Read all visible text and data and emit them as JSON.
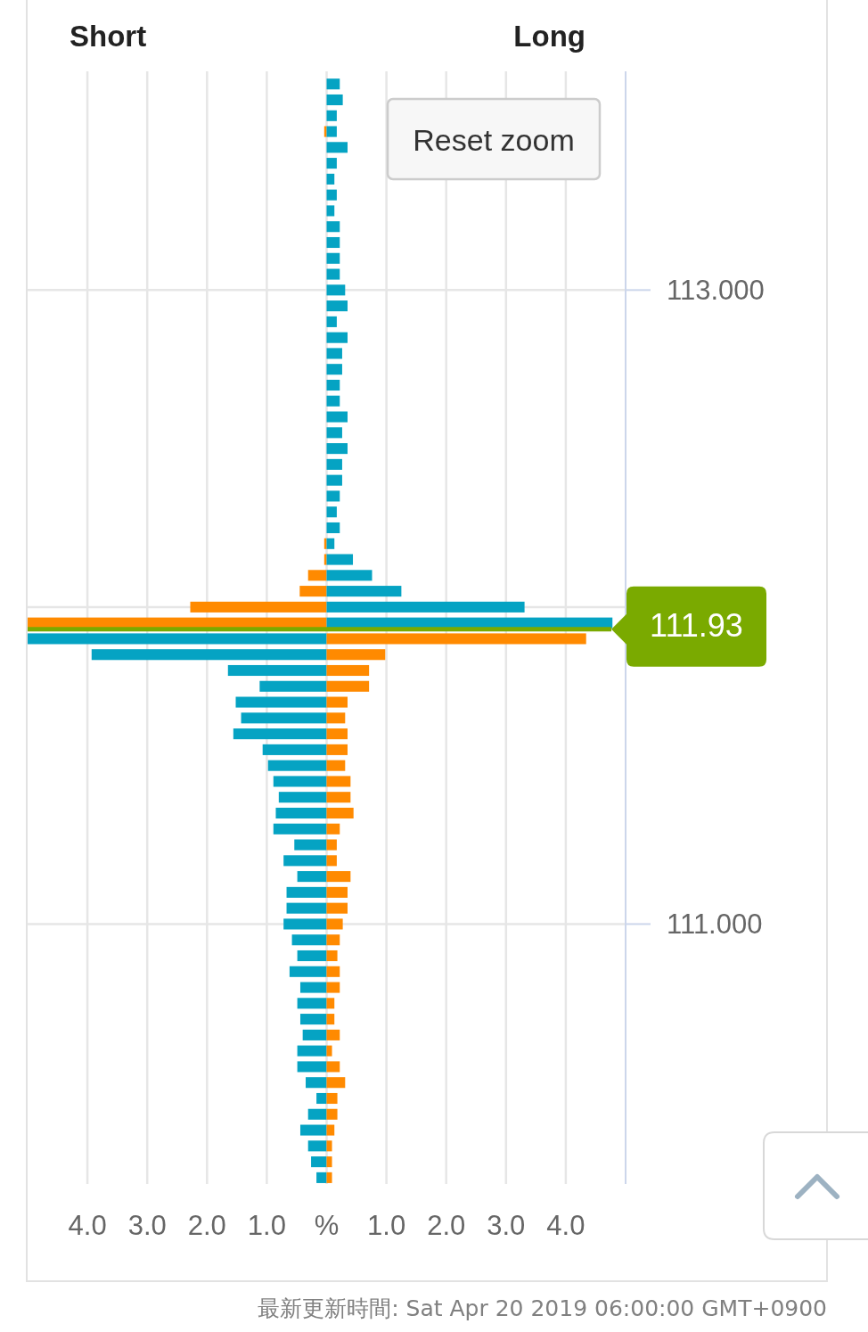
{
  "chart_data": {
    "type": "bar",
    "orientation": "horizontal",
    "stacked": true,
    "x": [
      113.65,
      113.6,
      113.55,
      113.5,
      113.45,
      113.4,
      113.35,
      113.3,
      113.25,
      113.2,
      113.15,
      113.1,
      113.05,
      113,
      112.95,
      112.9,
      112.85,
      112.8,
      112.75,
      112.7,
      112.65,
      112.6,
      112.55,
      112.5,
      112.45,
      112.4,
      112.35,
      112.3,
      112.25,
      112.2,
      112.15,
      112.1,
      112.05,
      112,
      111.95,
      111.9,
      111.85,
      111.8,
      111.75,
      111.7,
      111.65,
      111.6,
      111.55,
      111.5,
      111.45,
      111.4,
      111.35,
      111.3,
      111.25,
      111.2,
      111.15,
      111.1,
      111.05,
      111,
      110.95,
      110.9,
      110.85,
      110.8,
      110.75,
      110.7,
      110.65,
      110.6,
      110.55,
      110.5,
      110.45,
      110.4,
      110.35,
      110.3,
      110.25,
      110.2
    ],
    "series": [
      {
        "values": [
          null,
          null,
          null,
          -0.04,
          null,
          null,
          null,
          null,
          null,
          null,
          null,
          null,
          null,
          null,
          null,
          null,
          null,
          null,
          null,
          null,
          null,
          null,
          null,
          null,
          null,
          null,
          null,
          null,
          null,
          -0.04,
          -0.04,
          -0.31,
          -0.45,
          -2.28,
          -5,
          -5,
          -3.93,
          -1.65,
          -1.12,
          -1.52,
          -1.43,
          -1.56,
          -1.07,
          -0.98,
          -0.89,
          -0.8,
          -0.85,
          -0.89,
          -0.54,
          -0.72,
          -0.49,
          -0.67,
          -0.67,
          -0.72,
          -0.58,
          -0.49,
          -0.62,
          -0.44,
          -0.49,
          -0.44,
          -0.4,
          -0.49,
          -0.49,
          -0.35,
          -0.17,
          -0.31,
          -0.44,
          -0.31,
          -0.26,
          -0.17
        ],
        "colors": [
          null,
          null,
          null,
          "#ff8a00",
          null,
          null,
          null,
          null,
          null,
          null,
          null,
          null,
          null,
          null,
          null,
          null,
          null,
          null,
          null,
          null,
          null,
          null,
          null,
          null,
          null,
          null,
          null,
          null,
          null,
          "#ff8a00",
          "#ff8a00",
          "#ff8a00",
          "#ff8a00",
          "#ff8a00",
          "#ff8a00",
          "#05a3c3",
          "#05a3c3",
          "#05a3c3",
          "#05a3c3",
          "#05a3c3",
          "#05a3c3",
          "#05a3c3",
          "#05a3c3",
          "#05a3c3",
          "#05a3c3",
          "#05a3c3",
          "#05a3c3",
          "#05a3c3",
          "#05a3c3",
          "#05a3c3",
          "#05a3c3",
          "#05a3c3",
          "#05a3c3",
          "#05a3c3",
          "#05a3c3",
          "#05a3c3",
          "#05a3c3",
          "#05a3c3",
          "#05a3c3",
          "#05a3c3",
          "#05a3c3",
          "#05a3c3",
          "#05a3c3",
          "#05a3c3",
          "#05a3c3",
          "#05a3c3",
          "#05a3c3",
          "#05a3c3",
          "#05a3c3",
          "#05a3c3"
        ]
      },
      {
        "values": [
          0.22,
          0.27,
          0.17,
          0.17,
          0.35,
          0.17,
          0.13,
          0.17,
          0.13,
          0.22,
          0.22,
          0.22,
          0.22,
          0.31,
          0.35,
          0.17,
          0.35,
          0.26,
          0.26,
          0.22,
          0.22,
          0.35,
          0.26,
          0.35,
          0.26,
          0.26,
          0.22,
          0.17,
          0.22,
          0.13,
          0.44,
          0.76,
          1.25,
          3.31,
          4.78,
          4.34,
          0.98,
          0.71,
          0.71,
          0.35,
          0.31,
          0.35,
          0.35,
          0.31,
          0.4,
          0.4,
          0.45,
          0.22,
          0.17,
          0.17,
          0.4,
          0.35,
          0.35,
          0.27,
          0.22,
          0.18,
          0.22,
          0.22,
          0.13,
          0.13,
          0.22,
          0.09,
          0.22,
          0.31,
          0.18,
          0.18,
          0.13,
          0.09,
          0.09,
          0.09
        ],
        "colors": [
          "#05a3c3",
          "#05a3c3",
          "#05a3c3",
          "#05a3c3",
          "#05a3c3",
          "#05a3c3",
          "#05a3c3",
          "#05a3c3",
          "#05a3c3",
          "#05a3c3",
          "#05a3c3",
          "#05a3c3",
          "#05a3c3",
          "#05a3c3",
          "#05a3c3",
          "#05a3c3",
          "#05a3c3",
          "#05a3c3",
          "#05a3c3",
          "#05a3c3",
          "#05a3c3",
          "#05a3c3",
          "#05a3c3",
          "#05a3c3",
          "#05a3c3",
          "#05a3c3",
          "#05a3c3",
          "#05a3c3",
          "#05a3c3",
          "#05a3c3",
          "#05a3c3",
          "#05a3c3",
          "#05a3c3",
          "#05a3c3",
          "#05a3c3",
          "#ff8a00",
          "#ff8a00",
          "#ff8a00",
          "#ff8a00",
          "#ff8a00",
          "#ff8a00",
          "#ff8a00",
          "#ff8a00",
          "#ff8a00",
          "#ff8a00",
          "#ff8a00",
          "#ff8a00",
          "#ff8a00",
          "#ff8a00",
          "#ff8a00",
          "#ff8a00",
          "#ff8a00",
          "#ff8a00",
          "#ff8a00",
          "#ff8a00",
          "#ff8a00",
          "#ff8a00",
          "#ff8a00",
          "#ff8a00",
          "#ff8a00",
          "#ff8a00",
          "#ff8a00",
          "#ff8a00",
          "#ff8a00",
          "#ff8a00",
          "#ff8a00",
          "#ff8a00",
          "#ff8a00",
          "#ff8a00",
          "#ff8a00"
        ]
      }
    ],
    "xlim": [
      -5,
      5
    ],
    "xticks": [
      {
        "value": -4,
        "label": "4.0"
      },
      {
        "value": -3,
        "label": "3.0"
      },
      {
        "value": -2,
        "label": "2.0"
      },
      {
        "value": -1,
        "label": "1.0"
      },
      {
        "value": 0,
        "label": "%"
      },
      {
        "value": 1,
        "label": "1.0"
      },
      {
        "value": 2,
        "label": "2.0"
      },
      {
        "value": 3,
        "label": "3.0"
      },
      {
        "value": 4,
        "label": "4.0"
      }
    ],
    "ylim": [
      110.18,
      113.69
    ],
    "yticks": [
      {
        "value": 111,
        "label": "111.000"
      },
      {
        "value": 112,
        "label": null
      },
      {
        "value": 113,
        "label": "113.000"
      }
    ],
    "grid": true,
    "ref_lines": [
      {
        "axis": "y",
        "value": 111.93,
        "label": "111.93",
        "color": "#7aaa00"
      }
    ],
    "annotations": [
      "Short",
      "Long",
      "Reset zoom",
      "最新更新時間: Sat Apr 20 2019 06:00:00 GMT+0900"
    ]
  }
}
